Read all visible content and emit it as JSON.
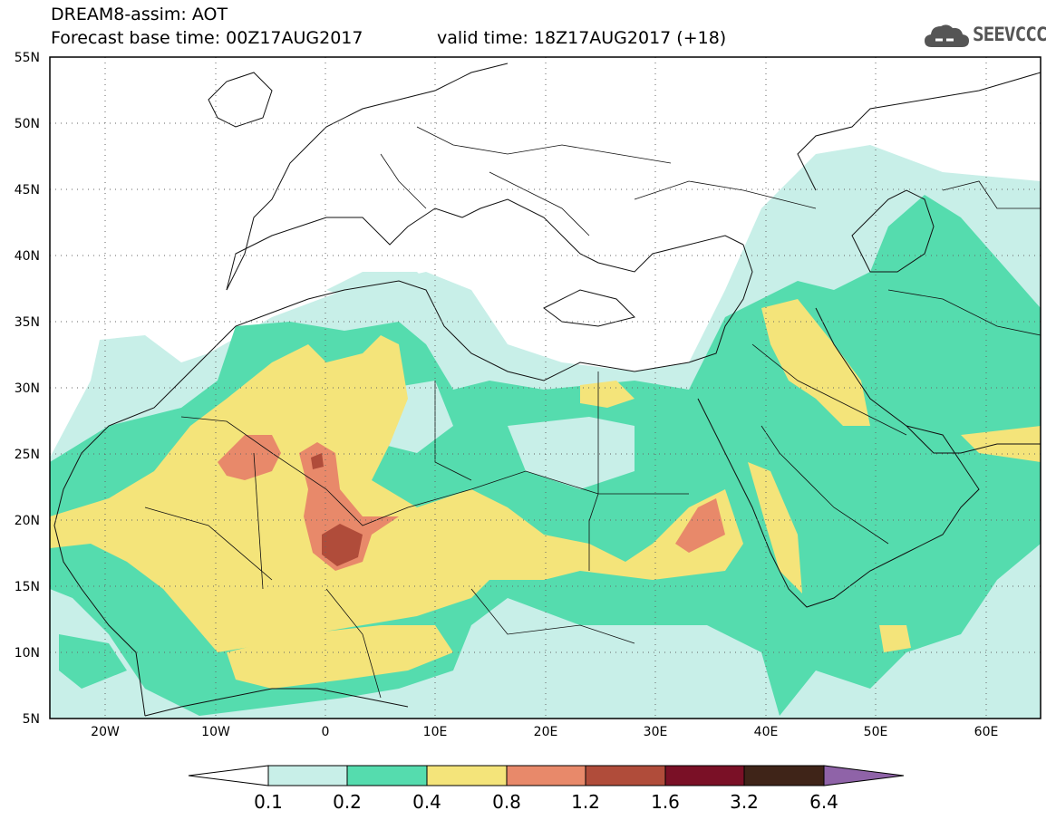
{
  "header": {
    "line1": "DREAM8-assim: AOT",
    "line2": "Forecast base time: 00Z17AUG2017",
    "line3": "valid time: 18Z17AUG2017 (+18)",
    "logo_text": "SEEVCCC",
    "logo_icon": "cloud-icon"
  },
  "map": {
    "lat_labels": [
      "55N",
      "50N",
      "45N",
      "40N",
      "35N",
      "30N",
      "25N",
      "20N",
      "15N",
      "10N",
      "5N"
    ],
    "lon_labels": [
      "20W",
      "10W",
      "0",
      "10E",
      "20E",
      "30E",
      "40E",
      "50E",
      "60E"
    ],
    "extent": {
      "lon_min": -25,
      "lon_max": 65,
      "lat_min": 5,
      "lat_max": 55
    }
  },
  "colorbar": {
    "labels": [
      "0.1",
      "0.2",
      "0.4",
      "0.8",
      "1.2",
      "1.6",
      "3.2",
      "6.4"
    ],
    "colors": [
      "#ffffff",
      "#c8efe8",
      "#55dcae",
      "#f4e47a",
      "#e8896a",
      "#b04c3a",
      "#7a1026",
      "#3f2418",
      "#8f63a8"
    ]
  }
}
